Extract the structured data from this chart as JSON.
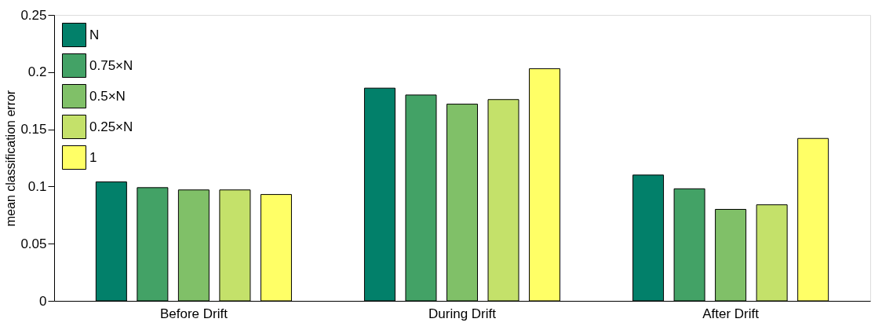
{
  "chart_data": {
    "type": "bar",
    "ylabel": "mean classification error",
    "categories": [
      "Before Drift",
      "During Drift",
      "After Drift"
    ],
    "series": [
      {
        "name": "N",
        "color": "#02806a",
        "values": [
          0.104,
          0.186,
          0.11
        ]
      },
      {
        "name": "0.75×N",
        "color": "#43a266",
        "values": [
          0.099,
          0.18,
          0.098
        ]
      },
      {
        "name": "0.5×N",
        "color": "#80c068",
        "values": [
          0.097,
          0.172,
          0.08
        ]
      },
      {
        "name": "0.25×N",
        "color": "#c4e16a",
        "values": [
          0.097,
          0.176,
          0.084
        ]
      },
      {
        "name": "1",
        "color": "#ffff66",
        "values": [
          0.093,
          0.203,
          0.142
        ]
      }
    ],
    "ylim": [
      0,
      0.25
    ],
    "yticks": [
      0,
      0.05,
      0.1,
      0.15,
      0.2,
      0.25
    ],
    "grid": false,
    "legend": "top left"
  }
}
